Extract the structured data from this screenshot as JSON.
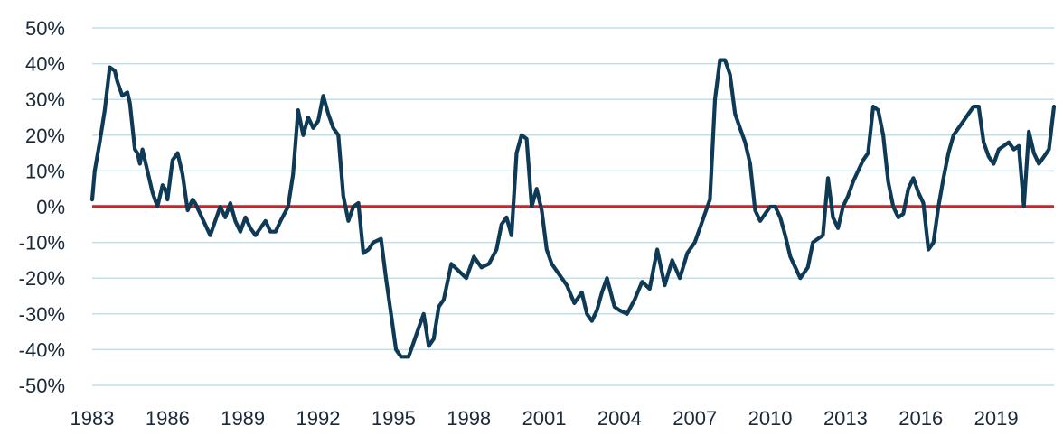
{
  "chart_data": {
    "type": "line",
    "title": "",
    "xlabel": "",
    "ylabel": "",
    "xlim": [
      1983,
      2021.3
    ],
    "ylim": [
      -50,
      50
    ],
    "grid": true,
    "y_tick_values": [
      50,
      40,
      30,
      20,
      10,
      0,
      -10,
      -20,
      -30,
      -40,
      -50
    ],
    "y_tick_labels": [
      "50%",
      "40%",
      "30%",
      "20%",
      "10%",
      "0%",
      "-10%",
      "-20%",
      "-30%",
      "-40%",
      "-50%"
    ],
    "x_tick_values": [
      1983,
      1986,
      1989,
      1992,
      1995,
      1998,
      2001,
      2004,
      2007,
      2010,
      2013,
      2016,
      2019
    ],
    "x_tick_labels": [
      "1983",
      "1986",
      "1989",
      "1992",
      "1995",
      "1998",
      "2001",
      "2004",
      "2007",
      "2010",
      "2013",
      "2016",
      "2019"
    ],
    "reference_line": {
      "y": 0,
      "color": "#c0282b"
    },
    "colors": {
      "series": "#0e3a56",
      "zero_line": "#c0282b",
      "grid": "#bfe0ea"
    },
    "series": [
      {
        "x": [
          1983.0,
          1983.1,
          1983.3,
          1983.5,
          1983.7,
          1983.9,
          1984.0,
          1984.2,
          1984.4,
          1984.5,
          1984.7,
          1984.8,
          1984.9,
          1985.0,
          1985.2,
          1985.4,
          1985.6,
          1985.8,
          1985.9,
          1986.0,
          1986.2,
          1986.4,
          1986.6,
          1986.8,
          1987.0,
          1987.1,
          1987.3,
          1987.5,
          1987.7,
          1987.9,
          1988.1,
          1988.3,
          1988.5,
          1988.7,
          1988.9,
          1989.1,
          1989.3,
          1989.5,
          1989.7,
          1989.9,
          1990.1,
          1990.3,
          1990.5,
          1990.8,
          1991.0,
          1991.2,
          1991.4,
          1991.6,
          1991.8,
          1992.0,
          1992.2,
          1992.4,
          1992.6,
          1992.8,
          1993.0,
          1993.2,
          1993.4,
          1993.6,
          1993.8,
          1994.0,
          1994.2,
          1994.5,
          1994.7,
          1994.9,
          1995.1,
          1995.3,
          1995.6,
          1995.8,
          1996.0,
          1996.2,
          1996.4,
          1996.6,
          1996.8,
          1997.0,
          1997.3,
          1997.6,
          1997.9,
          1998.2,
          1998.5,
          1998.8,
          1999.1,
          1999.3,
          1999.5,
          1999.7,
          1999.9,
          2000.1,
          2000.3,
          2000.5,
          2000.7,
          2000.9,
          2001.1,
          2001.3,
          2001.6,
          2001.9,
          2002.2,
          2002.5,
          2002.7,
          2002.9,
          2003.1,
          2003.3,
          2003.5,
          2003.8,
          2004.0,
          2004.3,
          2004.6,
          2004.9,
          2005.2,
          2005.5,
          2005.8,
          2006.1,
          2006.4,
          2006.7,
          2007.0,
          2007.2,
          2007.4,
          2007.6,
          2007.8,
          2008.0,
          2008.2,
          2008.4,
          2008.6,
          2008.8,
          2009.0,
          2009.2,
          2009.4,
          2009.6,
          2009.8,
          2010.0,
          2010.2,
          2010.4,
          2010.6,
          2010.8,
          2011.0,
          2011.2,
          2011.5,
          2011.7,
          2011.9,
          2012.1,
          2012.3,
          2012.5,
          2012.7,
          2012.9,
          2013.1,
          2013.3,
          2013.5,
          2013.7,
          2013.9,
          2014.1,
          2014.3,
          2014.5,
          2014.7,
          2014.9,
          2015.1,
          2015.3,
          2015.5,
          2015.7,
          2015.9,
          2016.1,
          2016.3,
          2016.5,
          2016.7,
          2016.9,
          2017.1,
          2017.3,
          2017.5,
          2017.7,
          2017.9,
          2018.1,
          2018.3,
          2018.5,
          2018.7,
          2018.9,
          2019.1,
          2019.3,
          2019.5,
          2019.7,
          2019.9,
          2020.1,
          2020.3,
          2020.5,
          2020.7,
          2020.9,
          2021.1,
          2021.3
        ],
        "y": [
          2,
          10,
          18,
          27,
          39,
          38,
          35,
          31,
          32,
          29,
          16,
          15,
          12,
          16,
          10,
          4,
          0,
          6,
          5,
          2,
          13,
          15,
          9,
          -1,
          2,
          1,
          -2,
          -5,
          -8,
          -4,
          0,
          -3,
          1,
          -4,
          -7,
          -3,
          -6,
          -8,
          -6,
          -4,
          -7,
          -7,
          -4,
          0,
          9,
          27,
          20,
          25,
          22,
          24,
          31,
          26,
          22,
          20,
          3,
          -4,
          0,
          1,
          -13,
          -12,
          -10,
          -9,
          -20,
          -30,
          -40,
          -42,
          -42,
          -38,
          -34,
          -30,
          -39,
          -37,
          -28,
          -26,
          -16,
          -18,
          -20,
          -14,
          -17,
          -16,
          -12,
          -5,
          -3,
          -8,
          15,
          20,
          19,
          0,
          5,
          -1,
          -12,
          -16,
          -19,
          -22,
          -27,
          -24,
          -30,
          -32,
          -29,
          -24,
          -20,
          -28,
          -29,
          -30,
          -26,
          -21,
          -23,
          -12,
          -22,
          -15,
          -20,
          -13,
          -10,
          -6,
          -2,
          2,
          30,
          41,
          41,
          37,
          26,
          22,
          18,
          12,
          -1,
          -4,
          -2,
          0,
          0,
          -3,
          -8,
          -14,
          -17,
          -20,
          -17,
          -10,
          -9,
          -8,
          8,
          -3,
          -6,
          0,
          3,
          7,
          10,
          13,
          15,
          28,
          27,
          20,
          7,
          0,
          -3,
          -2,
          5,
          8,
          4,
          1,
          -12,
          -10,
          0,
          8,
          15,
          20,
          22,
          24,
          26,
          28,
          28,
          18,
          14,
          12,
          16,
          17,
          18,
          16,
          17,
          0,
          21,
          15,
          12,
          14,
          16,
          28
        ]
      }
    ]
  }
}
